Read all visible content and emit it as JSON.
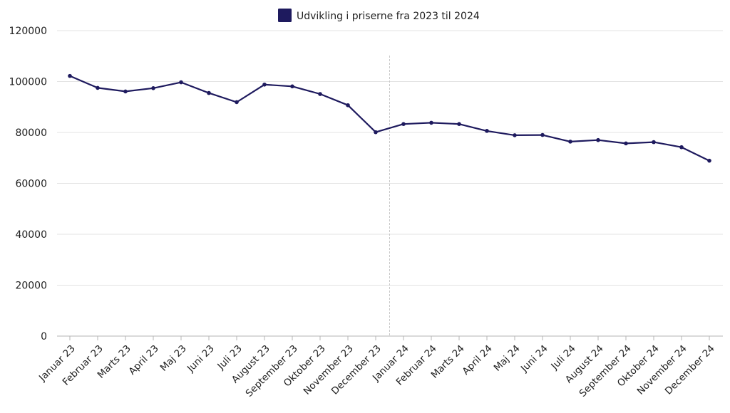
{
  "chart_data": {
    "type": "line",
    "categories": [
      "Januar 23",
      "Februar 23",
      "Marts 23",
      "April 23",
      "Maj 23",
      "Juni 23",
      "Juli 23",
      "August 23",
      "September 23",
      "Oktober 23",
      "November 23",
      "December 23",
      "Januar 24",
      "Februar 24",
      "Marts 24",
      "April 24",
      "Maj 24",
      "Juni 24",
      "Juli 24",
      "August 24",
      "September 24",
      "Oktober 24",
      "November 24",
      "December 24"
    ],
    "series": [
      {
        "name": "Udvikling i priserne fra 2023 til 2024",
        "color": "#1e1a5e",
        "values": [
          102200,
          97500,
          96100,
          97400,
          99700,
          95500,
          91900,
          98800,
          98100,
          95100,
          90700,
          80100,
          83300,
          83800,
          83300,
          80600,
          78900,
          79000,
          76400,
          77000,
          75700,
          76200,
          74200,
          68900
        ]
      }
    ],
    "ylim": [
      0,
      120000
    ],
    "yticks": [
      "0",
      "20000",
      "40000",
      "60000",
      "80000",
      "100000",
      "120000"
    ],
    "grid": true,
    "legend_position": "top-center",
    "divider_after_category": "December 23"
  }
}
